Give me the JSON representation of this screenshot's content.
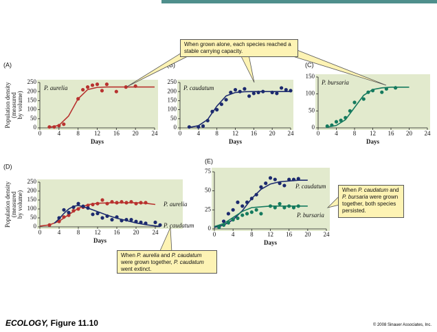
{
  "chart_data": [
    {
      "type": "scatter",
      "panel": "(A)",
      "xlabel": "Days",
      "ylabel": [
        "Population density",
        "(measured",
        "by volume)"
      ],
      "xlim": [
        0,
        24
      ],
      "xticks": [
        0,
        4,
        8,
        12,
        16,
        20,
        24
      ],
      "ylim": [
        0,
        250
      ],
      "yticks": [
        0,
        50,
        100,
        150,
        200,
        250
      ],
      "background": "#e2eacd",
      "series": [
        {
          "name": "P. aurelia",
          "color": "#b8322f",
          "x": [
            2,
            3,
            4,
            5,
            8,
            9,
            10,
            11,
            12,
            13,
            14,
            16,
            18,
            20
          ],
          "values": [
            5,
            5,
            12,
            20,
            160,
            210,
            225,
            235,
            240,
            205,
            240,
            200,
            225,
            230
          ],
          "curve_x": [
            2,
            4,
            6,
            8,
            10,
            12,
            14,
            16,
            18,
            20,
            22,
            24
          ],
          "curve_values": [
            3,
            14,
            65,
            160,
            211,
            223,
            225,
            225,
            225,
            225,
            225,
            225
          ]
        }
      ]
    },
    {
      "type": "scatter",
      "panel": "(B)",
      "xlabel": "Days",
      "xlim": [
        0,
        24
      ],
      "xticks": [
        0,
        4,
        8,
        12,
        16,
        20,
        24
      ],
      "ylim": [
        0,
        250
      ],
      "yticks": [
        0,
        50,
        100,
        150,
        200,
        250
      ],
      "background": "#e2eacd",
      "series": [
        {
          "name": "P. caudatum",
          "color": "#1c2a6e",
          "x": [
            2,
            4,
            5,
            6,
            7,
            8,
            9,
            10,
            11,
            12,
            13,
            14,
            15,
            16,
            17,
            18,
            20,
            21,
            22,
            23,
            24
          ],
          "values": [
            5,
            5,
            10,
            40,
            90,
            100,
            130,
            155,
            195,
            210,
            200,
            215,
            175,
            190,
            195,
            200,
            195,
            190,
            220,
            210,
            205
          ],
          "curve_x": [
            2,
            4,
            6,
            8,
            10,
            12,
            14,
            16,
            18,
            20,
            22,
            24
          ],
          "curve_values": [
            2,
            12,
            46,
            120,
            176,
            195,
            199,
            200,
            200,
            200,
            200,
            200
          ]
        }
      ]
    },
    {
      "type": "scatter",
      "panel": "(C)",
      "xlabel": "Days",
      "xlim": [
        0,
        24
      ],
      "xticks": [
        0,
        4,
        8,
        12,
        16,
        20,
        24
      ],
      "ylim": [
        0,
        150
      ],
      "yticks": [
        0,
        50,
        100,
        150
      ],
      "background": "#e2eacd",
      "series": [
        {
          "name": "P. bursaria",
          "color": "#157a5e",
          "x": [
            2,
            3,
            4,
            5,
            6,
            7,
            8,
            10,
            11,
            12,
            14,
            15,
            17
          ],
          "values": [
            5,
            8,
            18,
            22,
            30,
            50,
            75,
            85,
            105,
            110,
            105,
            115,
            118
          ],
          "curve_x": [
            2,
            4,
            6,
            8,
            10,
            12,
            14,
            16,
            18,
            20
          ],
          "curve_values": [
            2,
            7,
            24,
            60,
            96,
            113,
            118,
            120,
            120,
            120
          ]
        }
      ]
    },
    {
      "type": "scatter",
      "panel": "(D)",
      "xlabel": "Days",
      "ylabel": [
        "Population density",
        "(measured",
        "by volume)"
      ],
      "xlim": [
        0,
        25
      ],
      "xticks": [
        0,
        4,
        8,
        12,
        16,
        20,
        24
      ],
      "ylim": [
        0,
        250
      ],
      "yticks": [
        0,
        50,
        100,
        150,
        200,
        250
      ],
      "background": "#e2eacd",
      "series": [
        {
          "name": "P. aurelia",
          "color": "#b8322f",
          "x": [
            2,
            4,
            5,
            6,
            7,
            8,
            9,
            10,
            11,
            12,
            13,
            14,
            15,
            16,
            17,
            18,
            19,
            20,
            21,
            22
          ],
          "values": [
            10,
            30,
            55,
            65,
            90,
            100,
            110,
            120,
            125,
            130,
            150,
            130,
            140,
            135,
            140,
            135,
            140,
            130,
            135,
            135
          ],
          "curve_x": [
            0,
            2,
            4,
            6,
            8,
            10,
            12,
            14,
            16,
            18,
            20,
            22,
            24
          ],
          "curve_values": [
            4,
            11,
            31,
            68,
            104,
            124,
            132,
            134,
            135,
            135,
            135,
            132,
            125
          ]
        },
        {
          "name": "P. caudatum",
          "color": "#1c2a6e",
          "x": [
            4,
            5,
            6,
            7,
            8,
            9,
            10,
            11,
            12,
            13,
            14,
            15,
            16,
            17,
            18,
            19,
            20,
            21,
            22,
            24,
            25
          ],
          "values": [
            50,
            95,
            80,
            110,
            130,
            115,
            105,
            70,
            75,
            50,
            60,
            40,
            55,
            35,
            40,
            40,
            30,
            25,
            20,
            25,
            10
          ],
          "curve_x": [
            3,
            4,
            5,
            6,
            7,
            8,
            10,
            12,
            14,
            16,
            18,
            20,
            22,
            24,
            25
          ],
          "curve_values": [
            20,
            45,
            75,
            100,
            115,
            120,
            105,
            85,
            65,
            48,
            35,
            22,
            12,
            5,
            2
          ]
        }
      ]
    },
    {
      "type": "scatter",
      "panel": "(E)",
      "xlabel": "Days",
      "xlim": [
        0,
        24
      ],
      "xticks": [
        0,
        4,
        8,
        12,
        16,
        20,
        24
      ],
      "ylim": [
        0,
        75
      ],
      "yticks": [
        0,
        25,
        50,
        75
      ],
      "background": "#e2eacd",
      "series": [
        {
          "name": "P. caudatum",
          "color": "#1c2a6e",
          "x": [
            1,
            2,
            3,
            4,
            5,
            6,
            7,
            8,
            9,
            10,
            11,
            12,
            13,
            14,
            15,
            16,
            17,
            18
          ],
          "values": [
            3,
            10,
            20,
            25,
            35,
            30,
            35,
            40,
            45,
            55,
            60,
            67,
            65,
            60,
            57,
            65,
            65,
            66
          ],
          "curve_x": [
            0,
            2,
            4,
            6,
            8,
            10,
            12,
            14,
            16,
            18,
            20
          ],
          "curve_values": [
            2,
            5,
            12,
            24,
            40,
            52,
            59,
            62,
            63,
            64,
            64
          ]
        },
        {
          "name": "P. bursaria",
          "color": "#157a5e",
          "x": [
            1,
            2,
            3,
            4,
            5,
            6,
            7,
            8,
            9,
            10,
            12,
            13,
            14,
            15,
            16,
            17,
            18
          ],
          "values": [
            2,
            5,
            8,
            12,
            14,
            18,
            20,
            22,
            25,
            20,
            30,
            28,
            33,
            28,
            30,
            28,
            30
          ],
          "curve_x": [
            0,
            2,
            4,
            6,
            8,
            10,
            12,
            14,
            16,
            18,
            20
          ],
          "curve_values": [
            3,
            7,
            15,
            23,
            28,
            29,
            30,
            30,
            30,
            30,
            30
          ]
        }
      ]
    }
  ],
  "callouts": [
    {
      "parts": [
        {
          "text": "When grown alone, each species reached a stable carrying capacity.",
          "italic": false
        }
      ]
    },
    {
      "parts": [
        {
          "text": "When ",
          "italic": false
        },
        {
          "text": "P. aurelia",
          "italic": true
        },
        {
          "text": " and ",
          "italic": false
        },
        {
          "text": "P. caudatum",
          "italic": true
        },
        {
          "text": " were grown together, ",
          "italic": false
        },
        {
          "text": "P. caudatum",
          "italic": true
        },
        {
          "text": " went extinct.",
          "italic": false
        }
      ]
    },
    {
      "parts": [
        {
          "text": "When ",
          "italic": false
        },
        {
          "text": "P. caudatum",
          "italic": true
        },
        {
          "text": " and ",
          "italic": false
        },
        {
          "text": "P. bursaria",
          "italic": true
        },
        {
          "text": " were grown together, both species persisted.",
          "italic": false
        }
      ]
    }
  ],
  "footer": {
    "journal": "ECOLOGY,",
    "figure": "Figure 11.10",
    "credit": "© 2008 Sinauer Associates, Inc."
  }
}
